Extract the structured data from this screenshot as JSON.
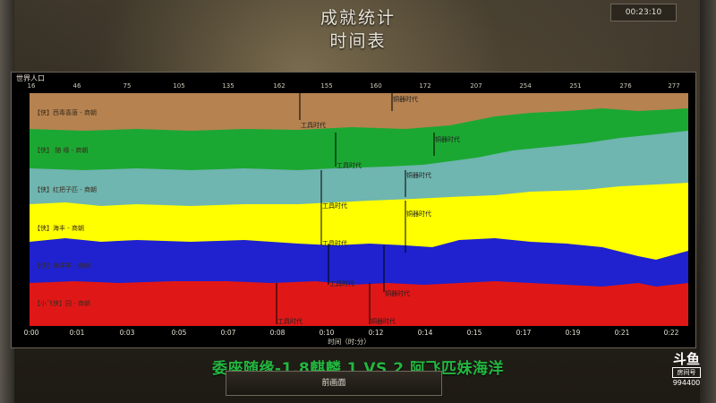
{
  "header": {
    "title": "成就统计",
    "subtitle": "时间表",
    "clock": "00:23:10"
  },
  "panel": {
    "label": "世界人口",
    "top_axis": [
      "16",
      "46",
      "75",
      "105",
      "135",
      "162",
      "155",
      "160",
      "172",
      "207",
      "254",
      "251",
      "276",
      "277"
    ],
    "bottom_axis": [
      "0:00",
      "0:01",
      "0:03",
      "0:05",
      "0:07",
      "0:08",
      "0:10",
      "0:12",
      "0:14",
      "0:15",
      "0:17",
      "0:19",
      "0:21",
      "0:22"
    ],
    "axis_title": "时间（时:分）"
  },
  "players": [
    {
      "label": "【侠】西毒喜唐 - 商朝",
      "color": "#b58250"
    },
    {
      "label": "【侠】  随 缘 - 商朝",
      "color": "#1ba832"
    },
    {
      "label": "【侠】红把子匹 - 商朝",
      "color": "#6fb5b0"
    },
    {
      "label": "【侠】海丰 - 商朝",
      "color": "#ffff00"
    },
    {
      "label": "【侠】海洋丰 - 商朝",
      "color": "#1f22ce"
    },
    {
      "label": "【小飞侠】园 - 商朝",
      "color": "#e01717"
    }
  ],
  "age_markers": [
    {
      "text": "工具时代"
    },
    {
      "text": "铜器时代"
    },
    {
      "text": "工具时代"
    },
    {
      "text": "铜器时代"
    },
    {
      "text": "工具时代"
    },
    {
      "text": "铜器时代"
    },
    {
      "text": "工具时代"
    },
    {
      "text": "铜器时代"
    },
    {
      "text": "工具时代"
    },
    {
      "text": "铜器时代"
    },
    {
      "text": "工具时代"
    },
    {
      "text": "铜器时代"
    }
  ],
  "match": {
    "banner": "委座随缘-1.8麒麟 1  VS 2 阿飞匹妹海洋",
    "back_label": "前画面"
  },
  "logo": {
    "mark": "斗鱼",
    "room_label": "房间号",
    "room_number": "994400"
  }
}
